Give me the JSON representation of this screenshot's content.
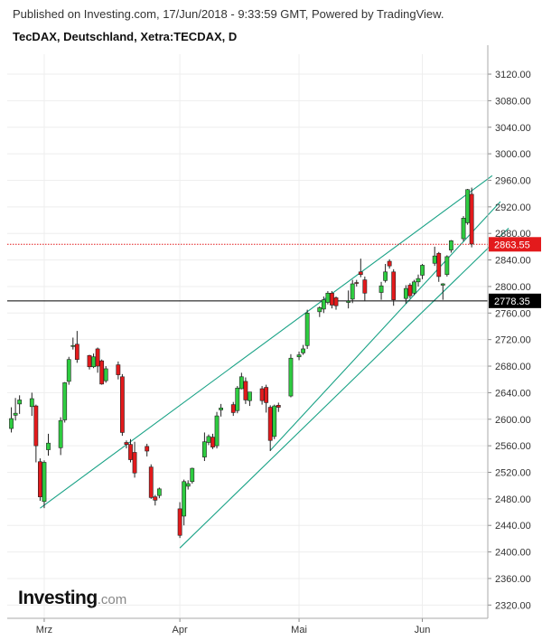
{
  "header": {
    "published": "Published on Investing.com, 17/Jun/2018 - 9:33:59 GMT, Powered by TradingView.",
    "title": "TecDAX, Deutschland, Xetra:TECDAX, D"
  },
  "logo": {
    "brand": "Investing",
    "suffix": ".com"
  },
  "colors": {
    "up": "#2ecc40",
    "down": "#e31a1c",
    "channel": "#19a286",
    "grid": "#eeeeee",
    "last_price": "#e31a1c",
    "support": "#000000"
  },
  "chart_data": {
    "type": "candlestick",
    "ylim": [
      2300,
      3150
    ],
    "y_ticks": [
      "3120.00",
      "3080.00",
      "3040.00",
      "3000.00",
      "2960.00",
      "2920.00",
      "2880.00",
      "2840.00",
      "2800.00",
      "2760.00",
      "2720.00",
      "2680.00",
      "2640.00",
      "2600.00",
      "2560.00",
      "2520.00",
      "2480.00",
      "2440.00",
      "2400.00",
      "2360.00",
      "2320.00"
    ],
    "x_labels": [
      {
        "label": "Mrz",
        "date": "2018-03-01"
      },
      {
        "label": "Apr",
        "date": "2018-04-03"
      },
      {
        "label": "Mai",
        "date": "2018-05-02"
      },
      {
        "label": "Jun",
        "date": "2018-06-01"
      }
    ],
    "last_price": {
      "label": "2863.55",
      "value": 2863.55
    },
    "support_level": {
      "label": "2778.35",
      "value": 2778.35
    },
    "candles": [
      {
        "date": "2018-02-21",
        "open": 2586,
        "high": 2618,
        "low": 2580,
        "close": 2601
      },
      {
        "date": "2018-02-22",
        "open": 2606,
        "high": 2632,
        "low": 2598,
        "close": 2609
      },
      {
        "date": "2018-02-23",
        "open": 2623,
        "high": 2636,
        "low": 2608,
        "close": 2629
      },
      {
        "date": "2018-02-26",
        "open": 2619,
        "high": 2640,
        "low": 2605,
        "close": 2631
      },
      {
        "date": "2018-02-27",
        "open": 2620,
        "high": 2622,
        "low": 2535,
        "close": 2560
      },
      {
        "date": "2018-02-28",
        "open": 2536,
        "high": 2541,
        "low": 2477,
        "close": 2483
      },
      {
        "date": "2018-03-01",
        "open": 2476,
        "high": 2538,
        "low": 2466,
        "close": 2535
      },
      {
        "date": "2018-03-02",
        "open": 2554,
        "high": 2578,
        "low": 2545,
        "close": 2564
      },
      {
        "date": "2018-03-05",
        "open": 2557,
        "high": 2603,
        "low": 2546,
        "close": 2598
      },
      {
        "date": "2018-03-06",
        "open": 2599,
        "high": 2656,
        "low": 2595,
        "close": 2655
      },
      {
        "date": "2018-03-07",
        "open": 2657,
        "high": 2694,
        "low": 2652,
        "close": 2690
      },
      {
        "date": "2018-03-08",
        "open": 2711,
        "high": 2723,
        "low": 2705,
        "close": 2711
      },
      {
        "date": "2018-03-09",
        "open": 2713,
        "high": 2733,
        "low": 2685,
        "close": 2690
      },
      {
        "date": "2018-03-12",
        "open": 2696,
        "high": 2697,
        "low": 2675,
        "close": 2679
      },
      {
        "date": "2018-03-13",
        "open": 2679,
        "high": 2699,
        "low": 2677,
        "close": 2694
      },
      {
        "date": "2018-03-14",
        "open": 2706,
        "high": 2708,
        "low": 2670,
        "close": 2680
      },
      {
        "date": "2018-03-15",
        "open": 2688,
        "high": 2690,
        "low": 2652,
        "close": 2653
      },
      {
        "date": "2018-03-16",
        "open": 2658,
        "high": 2680,
        "low": 2655,
        "close": 2676
      },
      {
        "date": "2018-03-19",
        "open": 2682,
        "high": 2687,
        "low": 2660,
        "close": 2667
      },
      {
        "date": "2018-03-20",
        "open": 2664,
        "high": 2668,
        "low": 2575,
        "close": 2580
      },
      {
        "date": "2018-03-21",
        "open": 2565,
        "high": 2568,
        "low": 2556,
        "close": 2562
      },
      {
        "date": "2018-03-22",
        "open": 2562,
        "high": 2570,
        "low": 2535,
        "close": 2539
      },
      {
        "date": "2018-03-23",
        "open": 2550,
        "high": 2566,
        "low": 2512,
        "close": 2519
      },
      {
        "date": "2018-03-26",
        "open": 2559,
        "high": 2563,
        "low": 2544,
        "close": 2552
      },
      {
        "date": "2018-03-27",
        "open": 2528,
        "high": 2532,
        "low": 2480,
        "close": 2482
      },
      {
        "date": "2018-03-28",
        "open": 2483,
        "high": 2486,
        "low": 2470,
        "close": 2478
      },
      {
        "date": "2018-03-29",
        "open": 2485,
        "high": 2497,
        "low": 2481,
        "close": 2495
      },
      {
        "date": "2018-04-03",
        "open": 2465,
        "high": 2475,
        "low": 2421,
        "close": 2425
      },
      {
        "date": "2018-04-04",
        "open": 2454,
        "high": 2509,
        "low": 2440,
        "close": 2506
      },
      {
        "date": "2018-04-05",
        "open": 2499,
        "high": 2508,
        "low": 2494,
        "close": 2503
      },
      {
        "date": "2018-04-06",
        "open": 2506,
        "high": 2527,
        "low": 2503,
        "close": 2526
      },
      {
        "date": "2018-04-09",
        "open": 2543,
        "high": 2580,
        "low": 2537,
        "close": 2566
      },
      {
        "date": "2018-04-10",
        "open": 2565,
        "high": 2577,
        "low": 2561,
        "close": 2574
      },
      {
        "date": "2018-04-11",
        "open": 2573,
        "high": 2578,
        "low": 2555,
        "close": 2558
      },
      {
        "date": "2018-04-12",
        "open": 2560,
        "high": 2611,
        "low": 2556,
        "close": 2605
      },
      {
        "date": "2018-04-13",
        "open": 2614,
        "high": 2623,
        "low": 2604,
        "close": 2617
      },
      {
        "date": "2018-04-16",
        "open": 2622,
        "high": 2626,
        "low": 2605,
        "close": 2610
      },
      {
        "date": "2018-04-17",
        "open": 2613,
        "high": 2650,
        "low": 2609,
        "close": 2647
      },
      {
        "date": "2018-04-18",
        "open": 2646,
        "high": 2670,
        "low": 2645,
        "close": 2664
      },
      {
        "date": "2018-04-19",
        "open": 2657,
        "high": 2663,
        "low": 2623,
        "close": 2629
      },
      {
        "date": "2018-04-20",
        "open": 2628,
        "high": 2641,
        "low": 2620,
        "close": 2641
      },
      {
        "date": "2018-04-23",
        "open": 2646,
        "high": 2650,
        "low": 2622,
        "close": 2628
      },
      {
        "date": "2018-04-24",
        "open": 2648,
        "high": 2652,
        "low": 2610,
        "close": 2625
      },
      {
        "date": "2018-04-25",
        "open": 2618,
        "high": 2621,
        "low": 2552,
        "close": 2568
      },
      {
        "date": "2018-04-26",
        "open": 2574,
        "high": 2622,
        "low": 2570,
        "close": 2620
      },
      {
        "date": "2018-04-27",
        "open": 2621,
        "high": 2625,
        "low": 2611,
        "close": 2618
      },
      {
        "date": "2018-04-30",
        "open": 2635,
        "high": 2698,
        "low": 2633,
        "close": 2692
      },
      {
        "date": "2018-05-02",
        "open": 2694,
        "high": 2702,
        "low": 2689,
        "close": 2697
      },
      {
        "date": "2018-05-03",
        "open": 2700,
        "high": 2712,
        "low": 2697,
        "close": 2706
      },
      {
        "date": "2018-05-04",
        "open": 2711,
        "high": 2765,
        "low": 2706,
        "close": 2760
      },
      {
        "date": "2018-05-07",
        "open": 2762,
        "high": 2770,
        "low": 2754,
        "close": 2768
      },
      {
        "date": "2018-05-08",
        "open": 2766,
        "high": 2785,
        "low": 2760,
        "close": 2780
      },
      {
        "date": "2018-05-09",
        "open": 2776,
        "high": 2793,
        "low": 2773,
        "close": 2790
      },
      {
        "date": "2018-05-10",
        "open": 2790,
        "high": 2793,
        "low": 2767,
        "close": 2772
      },
      {
        "date": "2018-05-11",
        "open": 2783,
        "high": 2785,
        "low": 2765,
        "close": 2771
      },
      {
        "date": "2018-05-14",
        "open": 2776,
        "high": 2794,
        "low": 2767,
        "close": 2778
      },
      {
        "date": "2018-05-15",
        "open": 2781,
        "high": 2810,
        "low": 2775,
        "close": 2804
      },
      {
        "date": "2018-05-16",
        "open": 2806,
        "high": 2810,
        "low": 2800,
        "close": 2805
      },
      {
        "date": "2018-05-17",
        "open": 2822,
        "high": 2842,
        "low": 2814,
        "close": 2818
      },
      {
        "date": "2018-05-18",
        "open": 2810,
        "high": 2815,
        "low": 2778,
        "close": 2790
      },
      {
        "date": "2018-05-22",
        "open": 2791,
        "high": 2807,
        "low": 2780,
        "close": 2801
      },
      {
        "date": "2018-05-23",
        "open": 2809,
        "high": 2834,
        "low": 2806,
        "close": 2822
      },
      {
        "date": "2018-05-24",
        "open": 2838,
        "high": 2841,
        "low": 2827,
        "close": 2831
      },
      {
        "date": "2018-05-25",
        "open": 2822,
        "high": 2826,
        "low": 2771,
        "close": 2780
      },
      {
        "date": "2018-05-28",
        "open": 2782,
        "high": 2802,
        "low": 2774,
        "close": 2797
      },
      {
        "date": "2018-05-29",
        "open": 2802,
        "high": 2805,
        "low": 2782,
        "close": 2786
      },
      {
        "date": "2018-05-30",
        "open": 2790,
        "high": 2810,
        "low": 2787,
        "close": 2807
      },
      {
        "date": "2018-05-31",
        "open": 2807,
        "high": 2818,
        "low": 2800,
        "close": 2812
      },
      {
        "date": "2018-06-01",
        "open": 2817,
        "high": 2834,
        "low": 2811,
        "close": 2832
      },
      {
        "date": "2018-06-04",
        "open": 2835,
        "high": 2860,
        "low": 2831,
        "close": 2846
      },
      {
        "date": "2018-06-05",
        "open": 2850,
        "high": 2852,
        "low": 2807,
        "close": 2815
      },
      {
        "date": "2018-06-06",
        "open": 2802,
        "high": 2805,
        "low": 2780,
        "close": 2804
      },
      {
        "date": "2018-06-07",
        "open": 2818,
        "high": 2847,
        "low": 2815,
        "close": 2845
      },
      {
        "date": "2018-06-08",
        "open": 2855,
        "high": 2870,
        "low": 2851,
        "close": 2869
      },
      {
        "date": "2018-06-11",
        "open": 2872,
        "high": 2906,
        "low": 2868,
        "close": 2903
      },
      {
        "date": "2018-06-12",
        "open": 2896,
        "high": 2947,
        "low": 2893,
        "close": 2946
      },
      {
        "date": "2018-06-13",
        "open": 2939,
        "high": 2949,
        "low": 2859,
        "close": 2864
      }
    ],
    "trend_lines": [
      {
        "from": {
          "date": "2018-02-28",
          "value": 2466
        },
        "to": {
          "date": "2018-06-18",
          "value": 2967
        }
      },
      {
        "from": {
          "date": "2018-04-03",
          "value": 2406
        },
        "to": {
          "date": "2018-06-22",
          "value": 2888
        }
      },
      {
        "from": {
          "date": "2018-04-25",
          "value": 2553
        },
        "to": {
          "date": "2018-06-20",
          "value": 2928
        }
      }
    ]
  }
}
